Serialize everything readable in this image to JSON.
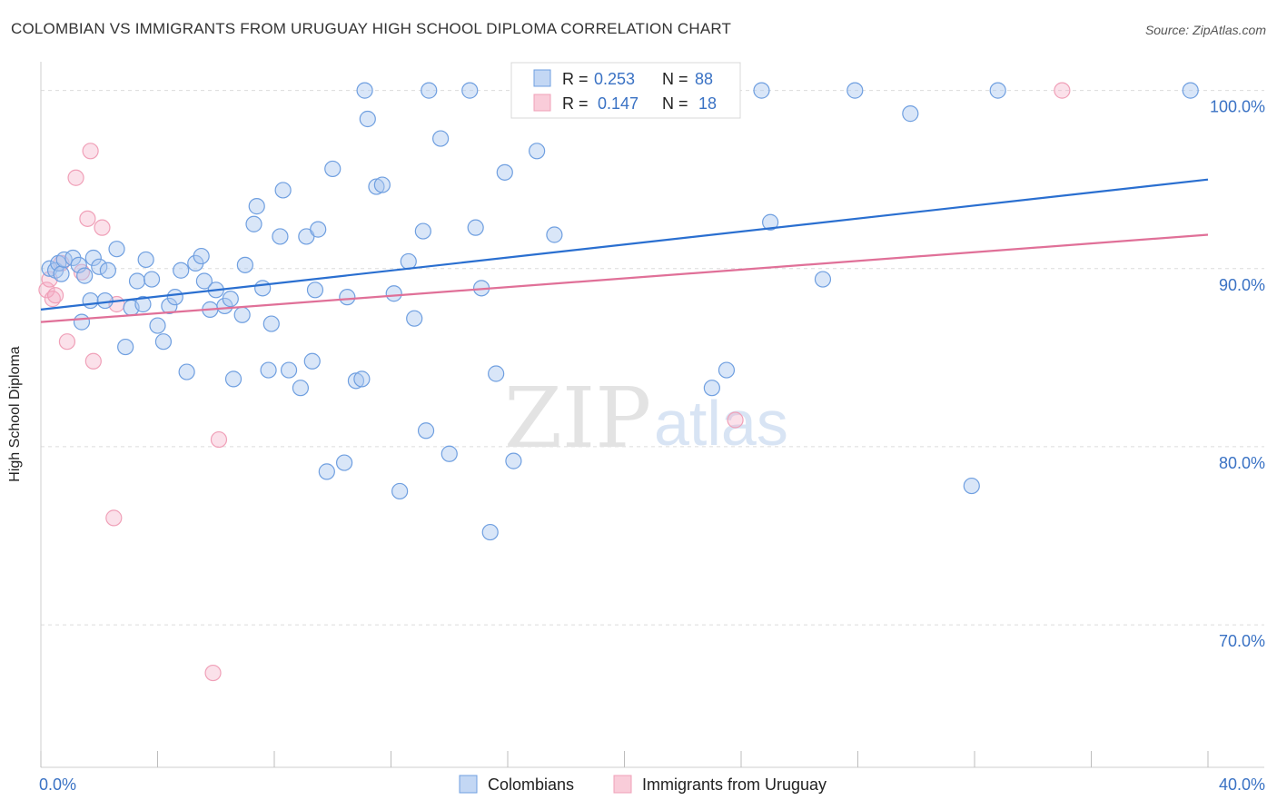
{
  "title": "COLOMBIAN VS IMMIGRANTS FROM URUGUAY HIGH SCHOOL DIPLOMA CORRELATION CHART",
  "source": "Source: ZipAtlas.com",
  "watermark": {
    "zip": "ZIP",
    "atlas": "atlas"
  },
  "colors": {
    "blue": "#6f9fe0",
    "blue_line": "#2a6fd0",
    "pink": "#f0a0b8",
    "pink_line": "#e07098",
    "tick_text": "#3a72c4"
  },
  "chart_data": {
    "type": "scatter",
    "xlabel": "",
    "ylabel": "High School Diploma",
    "xlim": [
      0,
      40
    ],
    "ylim": [
      61,
      100
    ],
    "x_tick_labels": [
      "0.0%",
      "40.0%"
    ],
    "y_ticks": [
      {
        "value": 99,
        "label": "100.0%"
      },
      {
        "value": 89,
        "label": "90.0%"
      },
      {
        "value": 79,
        "label": "80.0%"
      },
      {
        "value": 69,
        "label": "70.0%"
      }
    ],
    "legend": {
      "placement": "top-center",
      "rows": [
        {
          "r_label": "R =",
          "r_value": "0.253",
          "n_label": "N =",
          "n_value": "88"
        },
        {
          "r_label": "R =",
          "r_value": "0.147",
          "n_label": "N =",
          "n_value": "18"
        }
      ]
    },
    "series": [
      {
        "name": "Colombians",
        "color": "#6f9fe0",
        "trend": [
          [
            0,
            86.7
          ],
          [
            40,
            94.0
          ]
        ],
        "points": [
          [
            0.3,
            89.0
          ],
          [
            0.5,
            88.9
          ],
          [
            0.6,
            89.3
          ],
          [
            0.7,
            88.7
          ],
          [
            0.8,
            89.5
          ],
          [
            1.1,
            89.6
          ],
          [
            1.3,
            89.2
          ],
          [
            1.5,
            88.6
          ],
          [
            1.4,
            86.0
          ],
          [
            1.7,
            87.2
          ],
          [
            1.8,
            89.6
          ],
          [
            2.0,
            89.1
          ],
          [
            2.3,
            88.9
          ],
          [
            2.2,
            87.2
          ],
          [
            2.6,
            90.1
          ],
          [
            2.9,
            84.6
          ],
          [
            3.1,
            86.8
          ],
          [
            3.3,
            88.3
          ],
          [
            3.5,
            87.0
          ],
          [
            3.6,
            89.5
          ],
          [
            3.8,
            88.4
          ],
          [
            4.0,
            85.8
          ],
          [
            4.2,
            84.9
          ],
          [
            4.4,
            86.9
          ],
          [
            4.6,
            87.4
          ],
          [
            4.8,
            88.9
          ],
          [
            5.0,
            83.2
          ],
          [
            5.3,
            89.3
          ],
          [
            5.5,
            89.7
          ],
          [
            5.6,
            88.3
          ],
          [
            5.8,
            86.7
          ],
          [
            6.0,
            87.8
          ],
          [
            6.3,
            86.9
          ],
          [
            6.5,
            87.3
          ],
          [
            6.6,
            82.8
          ],
          [
            6.9,
            86.4
          ],
          [
            7.0,
            89.2
          ],
          [
            7.3,
            91.5
          ],
          [
            7.4,
            92.5
          ],
          [
            7.6,
            87.9
          ],
          [
            7.8,
            83.3
          ],
          [
            7.9,
            85.9
          ],
          [
            8.2,
            90.8
          ],
          [
            8.3,
            93.4
          ],
          [
            8.5,
            83.3
          ],
          [
            8.9,
            82.3
          ],
          [
            9.1,
            90.8
          ],
          [
            9.3,
            83.8
          ],
          [
            9.4,
            87.8
          ],
          [
            9.5,
            91.2
          ],
          [
            9.8,
            77.6
          ],
          [
            10.0,
            94.6
          ],
          [
            10.4,
            78.1
          ],
          [
            10.5,
            87.4
          ],
          [
            10.8,
            82.7
          ],
          [
            11.0,
            82.8
          ],
          [
            11.1,
            99.0
          ],
          [
            11.2,
            97.4
          ],
          [
            11.5,
            93.6
          ],
          [
            11.7,
            93.7
          ],
          [
            12.1,
            87.6
          ],
          [
            12.3,
            76.5
          ],
          [
            12.6,
            89.4
          ],
          [
            12.8,
            86.2
          ],
          [
            13.1,
            91.1
          ],
          [
            13.2,
            79.9
          ],
          [
            13.3,
            99.0
          ],
          [
            13.7,
            96.3
          ],
          [
            14.0,
            78.6
          ],
          [
            14.7,
            99.0
          ],
          [
            14.9,
            91.3
          ],
          [
            15.1,
            87.9
          ],
          [
            15.4,
            74.2
          ],
          [
            15.6,
            83.1
          ],
          [
            15.9,
            94.4
          ],
          [
            16.2,
            78.2
          ],
          [
            17.0,
            95.6
          ],
          [
            17.6,
            90.9
          ],
          [
            23.0,
            82.3
          ],
          [
            23.5,
            83.3
          ],
          [
            24.7,
            99.0
          ],
          [
            25.0,
            91.6
          ],
          [
            26.8,
            88.4
          ],
          [
            27.9,
            99.0
          ],
          [
            29.8,
            97.7
          ],
          [
            31.9,
            76.8
          ],
          [
            32.8,
            99.0
          ],
          [
            39.4,
            99.0
          ]
        ]
      },
      {
        "name": "Immigrants from Uruguay",
        "color": "#f0a0b8",
        "trend": [
          [
            0,
            86.0
          ],
          [
            40,
            90.9
          ]
        ],
        "points": [
          [
            0.2,
            87.8
          ],
          [
            0.4,
            87.3
          ],
          [
            0.5,
            87.5
          ],
          [
            0.7,
            89.3
          ],
          [
            0.9,
            84.9
          ],
          [
            1.2,
            94.1
          ],
          [
            1.4,
            88.8
          ],
          [
            1.6,
            91.8
          ],
          [
            1.7,
            95.6
          ],
          [
            1.8,
            83.8
          ],
          [
            2.1,
            91.3
          ],
          [
            2.5,
            75.0
          ],
          [
            2.6,
            87.0
          ],
          [
            5.9,
            66.3
          ],
          [
            6.1,
            79.4
          ],
          [
            23.8,
            80.5
          ],
          [
            35.0,
            99.0
          ],
          [
            0.3,
            88.4
          ]
        ]
      }
    ]
  }
}
